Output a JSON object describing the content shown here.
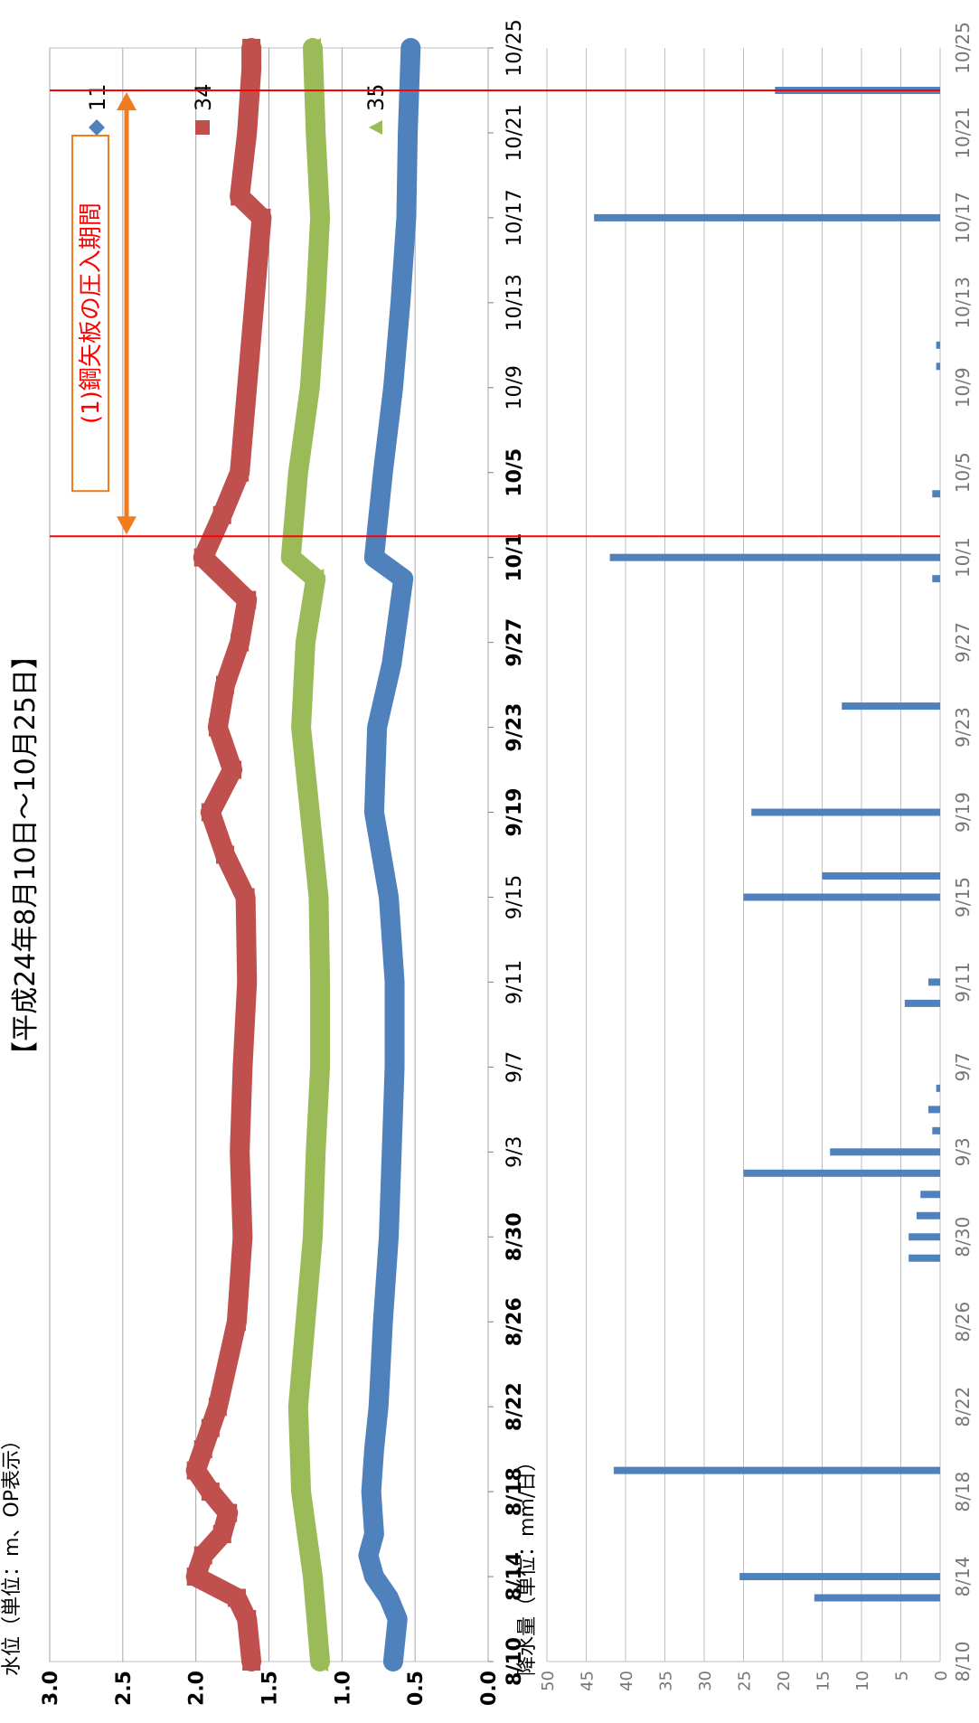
{
  "title": "【平成24年8月10日～10月25日】",
  "annotation": {
    "label": "(1)鋼矢板の圧入期間",
    "start_date": "10/2",
    "end_date": "10/23",
    "box_color": "#f07c1e",
    "arrow_color": "#f07c1e",
    "line_color": "#ff0000"
  },
  "chart_data": [
    {
      "type": "line",
      "ylabel": "水位（単位：m、OP表示）",
      "ylim": [
        0.0,
        3.0
      ],
      "yticks": [
        "0.0",
        "0.5",
        "1.0",
        "1.5",
        "2.0",
        "2.5",
        "3.0"
      ],
      "xticks": [
        "8/10",
        "8/14",
        "8/18",
        "8/22",
        "8/26",
        "8/30",
        "9/3",
        "9/7",
        "9/11",
        "9/15",
        "9/19",
        "9/23",
        "9/27",
        "10/1",
        "10/5",
        "10/9",
        "10/13",
        "10/17",
        "10/21",
        "10/25"
      ],
      "bold_xticks": [
        "8/10",
        "8/14",
        "8/18",
        "8/22",
        "8/26",
        "8/30",
        "9/19",
        "9/23",
        "9/27",
        "10/1",
        "10/5"
      ],
      "legend_placement": "top-left",
      "grid": true,
      "series": [
        {
          "name": "11",
          "color": "#4f81bd",
          "marker": "diamond",
          "x": [
            "8/10",
            "8/12",
            "8/13",
            "8/14",
            "8/15",
            "8/16",
            "8/18",
            "8/20",
            "8/22",
            "8/26",
            "8/30",
            "9/3",
            "9/7",
            "9/11",
            "9/15",
            "9/19",
            "9/23",
            "9/26",
            "9/28",
            "9/30",
            "10/1",
            "10/5",
            "10/9",
            "10/13",
            "10/17",
            "10/21",
            "10/25"
          ],
          "y": [
            0.65,
            0.62,
            0.68,
            0.78,
            0.82,
            0.78,
            0.8,
            0.78,
            0.75,
            0.72,
            0.68,
            0.66,
            0.64,
            0.64,
            0.68,
            0.78,
            0.76,
            0.66,
            0.62,
            0.58,
            0.78,
            0.72,
            0.65,
            0.6,
            0.56,
            0.55,
            0.53
          ]
        },
        {
          "name": "34",
          "color": "#c0504d",
          "marker": "square",
          "x": [
            "8/10",
            "8/12",
            "8/13",
            "8/14",
            "8/15",
            "8/16",
            "8/17",
            "8/18",
            "8/19",
            "8/20",
            "8/21",
            "8/22",
            "8/26",
            "8/30",
            "9/3",
            "9/7",
            "9/11",
            "9/15",
            "9/17",
            "9/19",
            "9/21",
            "9/23",
            "9/25",
            "9/27",
            "9/29",
            "10/1",
            "10/3",
            "10/5",
            "10/9",
            "10/13",
            "10/17",
            "10/18",
            "10/21",
            "10/24",
            "10/25"
          ],
          "y": [
            1.62,
            1.65,
            1.72,
            2.0,
            1.95,
            1.82,
            1.78,
            1.9,
            2.0,
            1.95,
            1.9,
            1.85,
            1.72,
            1.68,
            1.7,
            1.68,
            1.65,
            1.66,
            1.8,
            1.9,
            1.75,
            1.85,
            1.8,
            1.7,
            1.65,
            1.95,
            1.82,
            1.7,
            1.65,
            1.6,
            1.55,
            1.7,
            1.65,
            1.62,
            1.62
          ]
        },
        {
          "name": "35",
          "color": "#9bbb59",
          "marker": "triangle",
          "x": [
            "8/10",
            "8/14",
            "8/18",
            "8/22",
            "8/26",
            "8/30",
            "9/3",
            "9/7",
            "9/11",
            "9/15",
            "9/19",
            "9/23",
            "9/27",
            "9/30",
            "10/1",
            "10/5",
            "10/9",
            "10/13",
            "10/17",
            "10/21",
            "10/25"
          ],
          "y": [
            1.15,
            1.2,
            1.28,
            1.3,
            1.25,
            1.2,
            1.18,
            1.15,
            1.15,
            1.16,
            1.22,
            1.28,
            1.25,
            1.18,
            1.35,
            1.3,
            1.22,
            1.18,
            1.15,
            1.18,
            1.2
          ]
        }
      ]
    },
    {
      "type": "bar",
      "ylabel": "降水量（単位：mm/日）",
      "ylim": [
        0,
        50
      ],
      "yticks": [
        "0",
        "5",
        "10",
        "15",
        "20",
        "25",
        "30",
        "35",
        "40",
        "45",
        "50"
      ],
      "grid": true,
      "color": "#4f81bd",
      "x": [
        "8/13",
        "8/14",
        "8/19",
        "8/29",
        "8/30",
        "8/31",
        "9/1",
        "9/2",
        "9/3",
        "9/4",
        "9/5",
        "9/6",
        "9/10",
        "9/11",
        "9/15",
        "9/16",
        "9/19",
        "9/24",
        "9/30",
        "10/1",
        "10/4",
        "10/10",
        "10/11",
        "10/17",
        "10/23"
      ],
      "values": [
        16,
        25.5,
        41.5,
        4,
        4,
        3,
        2.5,
        25,
        14,
        1,
        1.5,
        0.5,
        4.5,
        1.5,
        25,
        15,
        24,
        12.5,
        1,
        42,
        1,
        0.5,
        0.5,
        44,
        21
      ]
    }
  ]
}
